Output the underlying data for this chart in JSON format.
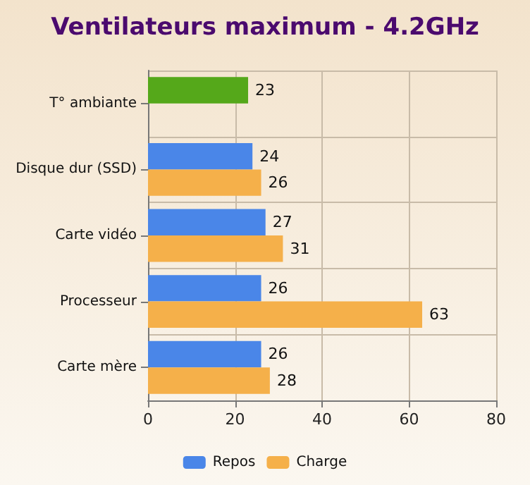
{
  "chart_data": {
    "type": "bar",
    "orientation": "horizontal",
    "title": "Ventilateurs maximum - 4.2GHz",
    "categories": [
      "T° ambiante",
      "Disque dur (SSD)",
      "Carte vidéo",
      "Processeur",
      "Carte mère"
    ],
    "series": [
      {
        "name": "Repos",
        "color": "#4a86e8",
        "colors": [
          "#55a81a",
          "#4a86e8",
          "#4a86e8",
          "#4a86e8",
          "#4a86e8"
        ],
        "values": [
          23,
          24,
          27,
          26,
          26
        ]
      },
      {
        "name": "Charge",
        "color": "#f5b04a",
        "values": [
          null,
          26,
          31,
          63,
          28
        ]
      }
    ],
    "xlim": [
      0,
      80
    ],
    "xticks": [
      0,
      20,
      40,
      60,
      80
    ],
    "grid": true,
    "legend": "bottom",
    "data_labels": true
  }
}
